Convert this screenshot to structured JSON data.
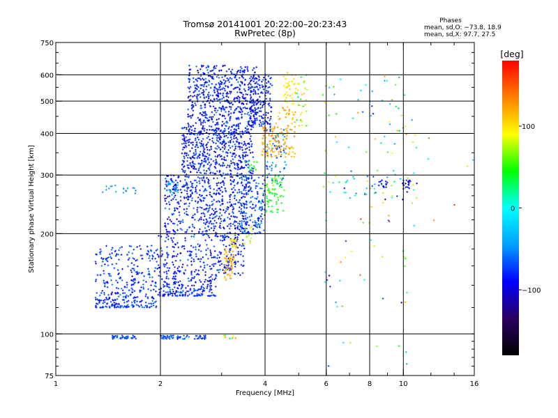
{
  "chart_data": {
    "type": "scatter",
    "title": "Tromsø 20141001 20:22:00–20:23:43",
    "subtitle": "RwPretec (8p)",
    "xlabel": "Frequency [MHz]",
    "ylabel": "Stationary phase Virtual Height [km]",
    "xscale": "log",
    "yscale": "log",
    "xlim": [
      1,
      16
    ],
    "ylim": [
      75,
      750
    ],
    "x_ticks": [
      "1",
      "2",
      "4",
      "6",
      "8",
      "10",
      "16"
    ],
    "y_ticks": [
      "75",
      "100",
      "200",
      "300",
      "400",
      "500",
      "600",
      "750"
    ],
    "grid_x": [
      2,
      4,
      6,
      8,
      10
    ],
    "grid_y": [
      100,
      200,
      300,
      400,
      500,
      600
    ],
    "colorbar": {
      "label": "[deg]",
      "min": -180,
      "max": 180,
      "ticks": [
        "100",
        "0",
        "−100"
      ],
      "tick_values": [
        100,
        0,
        -100
      ],
      "colors": [
        "#000000",
        "#2a0060",
        "#0000ff",
        "#00a0ff",
        "#00ffff",
        "#00ff00",
        "#ffff00",
        "#ff8000",
        "#ff0000"
      ]
    },
    "stats": {
      "heading": "Phases",
      "line1": "mean, sd,O: −73.8, 18.9",
      "line2": "mean, sd,X:  97.7, 27.5"
    },
    "series": [
      {
        "clusters": [
          {
            "f": [
              1.3,
              1.95
            ],
            "h": [
              120,
              185
            ],
            "phase": [
              -95,
              -55
            ],
            "n": 360,
            "shape": "lower"
          },
          {
            "f": [
              1.95,
              2.9
            ],
            "h": [
              130,
              200
            ],
            "phase": [
              -105,
              -60
            ],
            "n": 360,
            "shape": "lower"
          },
          {
            "f": [
              2.9,
              3.5
            ],
            "h": [
              150,
              200
            ],
            "phase": [
              -110,
              -60
            ],
            "n": 120
          },
          {
            "f": [
              2.05,
              3.6
            ],
            "h": [
              200,
              300
            ],
            "phase": [
              -110,
              -55
            ],
            "n": 520
          },
          {
            "f": [
              2.3,
              3.7
            ],
            "h": [
              300,
              420
            ],
            "phase": [
              -110,
              -60
            ],
            "n": 520
          },
          {
            "f": [
              2.4,
              3.8
            ],
            "h": [
              420,
              640
            ],
            "phase": [
              -110,
              -55
            ],
            "n": 560
          },
          {
            "f": [
              3.6,
              4.2
            ],
            "h": [
              420,
              600
            ],
            "phase": [
              -115,
              -60
            ],
            "n": 160
          },
          {
            "f": [
              3.4,
              4.0
            ],
            "h": [
              200,
              300
            ],
            "phase": [
              -100,
              -40
            ],
            "n": 160
          },
          {
            "f": [
              4.0,
              4.6
            ],
            "h": [
              280,
              420
            ],
            "phase": [
              -85,
              -35
            ],
            "n": 70
          },
          {
            "f": [
              1.45,
              1.7
            ],
            "h": [
              96.5,
              99
            ],
            "phase": [
              -80,
              -55
            ],
            "n": 40
          },
          {
            "f": [
              2.0,
              2.7
            ],
            "h": [
              96.5,
              99
            ],
            "phase": [
              -85,
              -55
            ],
            "n": 60
          },
          {
            "f": [
              2.1,
              2.25
            ],
            "h": [
              260,
              285
            ],
            "phase": [
              -50,
              -30
            ],
            "n": 18
          },
          {
            "f": [
              1.55,
              1.7
            ],
            "h": [
              262,
              275
            ],
            "phase": [
              -55,
              -35
            ],
            "n": 10
          },
          {
            "f": [
              1.35,
              1.5
            ],
            "h": [
              265,
              280
            ],
            "phase": [
              -45,
              -30
            ],
            "n": 8
          }
        ]
      },
      {
        "clusters": [
          {
            "f": [
              3.9,
              4.9
            ],
            "h": [
              340,
              420
            ],
            "phase": [
              100,
              145
            ],
            "n": 110
          },
          {
            "f": [
              4.3,
              4.9
            ],
            "h": [
              400,
              480
            ],
            "phase": [
              105,
              135
            ],
            "n": 35
          },
          {
            "f": [
              4.5,
              4.9
            ],
            "h": [
              480,
              610
            ],
            "phase": [
              85,
              115
            ],
            "n": 40
          },
          {
            "f": [
              4.0,
              4.55
            ],
            "h": [
              230,
              300
            ],
            "phase": [
              25,
              65
            ],
            "n": 70
          },
          {
            "f": [
              3.05,
              3.25
            ],
            "h": [
              145,
              180
            ],
            "phase": [
              105,
              130
            ],
            "n": 55
          },
          {
            "f": [
              3.15,
              3.35
            ],
            "h": [
              180,
              200
            ],
            "phase": [
              80,
              110
            ],
            "n": 18
          },
          {
            "f": [
              3.45,
              3.7
            ],
            "h": [
              185,
              210
            ],
            "phase": [
              60,
              100
            ],
            "n": 15
          },
          {
            "f": [
              3.5,
              3.8
            ],
            "h": [
              310,
              330
            ],
            "phase": [
              30,
              60
            ],
            "n": 12
          },
          {
            "f": [
              4.9,
              5.3
            ],
            "h": [
              420,
              600
            ],
            "phase": [
              30,
              120
            ],
            "n": 30
          },
          {
            "f": [
              3.0,
              3.3
            ],
            "h": [
              96,
              100
            ],
            "phase": [
              -20,
              150
            ],
            "n": 10
          }
        ]
      },
      {
        "clusters": [
          {
            "f": [
              5.8,
              11.0
            ],
            "h": [
              250,
              310
            ],
            "phase": [
              -110,
              120
            ],
            "n": 55
          },
          {
            "f": [
              5.8,
              11.0
            ],
            "h": [
              320,
              650
            ],
            "phase": [
              -110,
              150
            ],
            "n": 55
          },
          {
            "f": [
              5.8,
              11.0
            ],
            "h": [
              80,
              250
            ],
            "phase": [
              -120,
              170
            ],
            "n": 45
          },
          {
            "f": [
              8.5,
              9.0
            ],
            "h": [
              275,
              290
            ],
            "phase": [
              -105,
              -80
            ],
            "n": 14
          },
          {
            "f": [
              9.9,
              10.5
            ],
            "h": [
              270,
              290
            ],
            "phase": [
              -115,
              -85
            ],
            "n": 18
          },
          {
            "f": [
              11.5,
              16
            ],
            "h": [
              200,
              640
            ],
            "phase": [
              -120,
              170
            ],
            "n": 6
          }
        ]
      }
    ]
  }
}
